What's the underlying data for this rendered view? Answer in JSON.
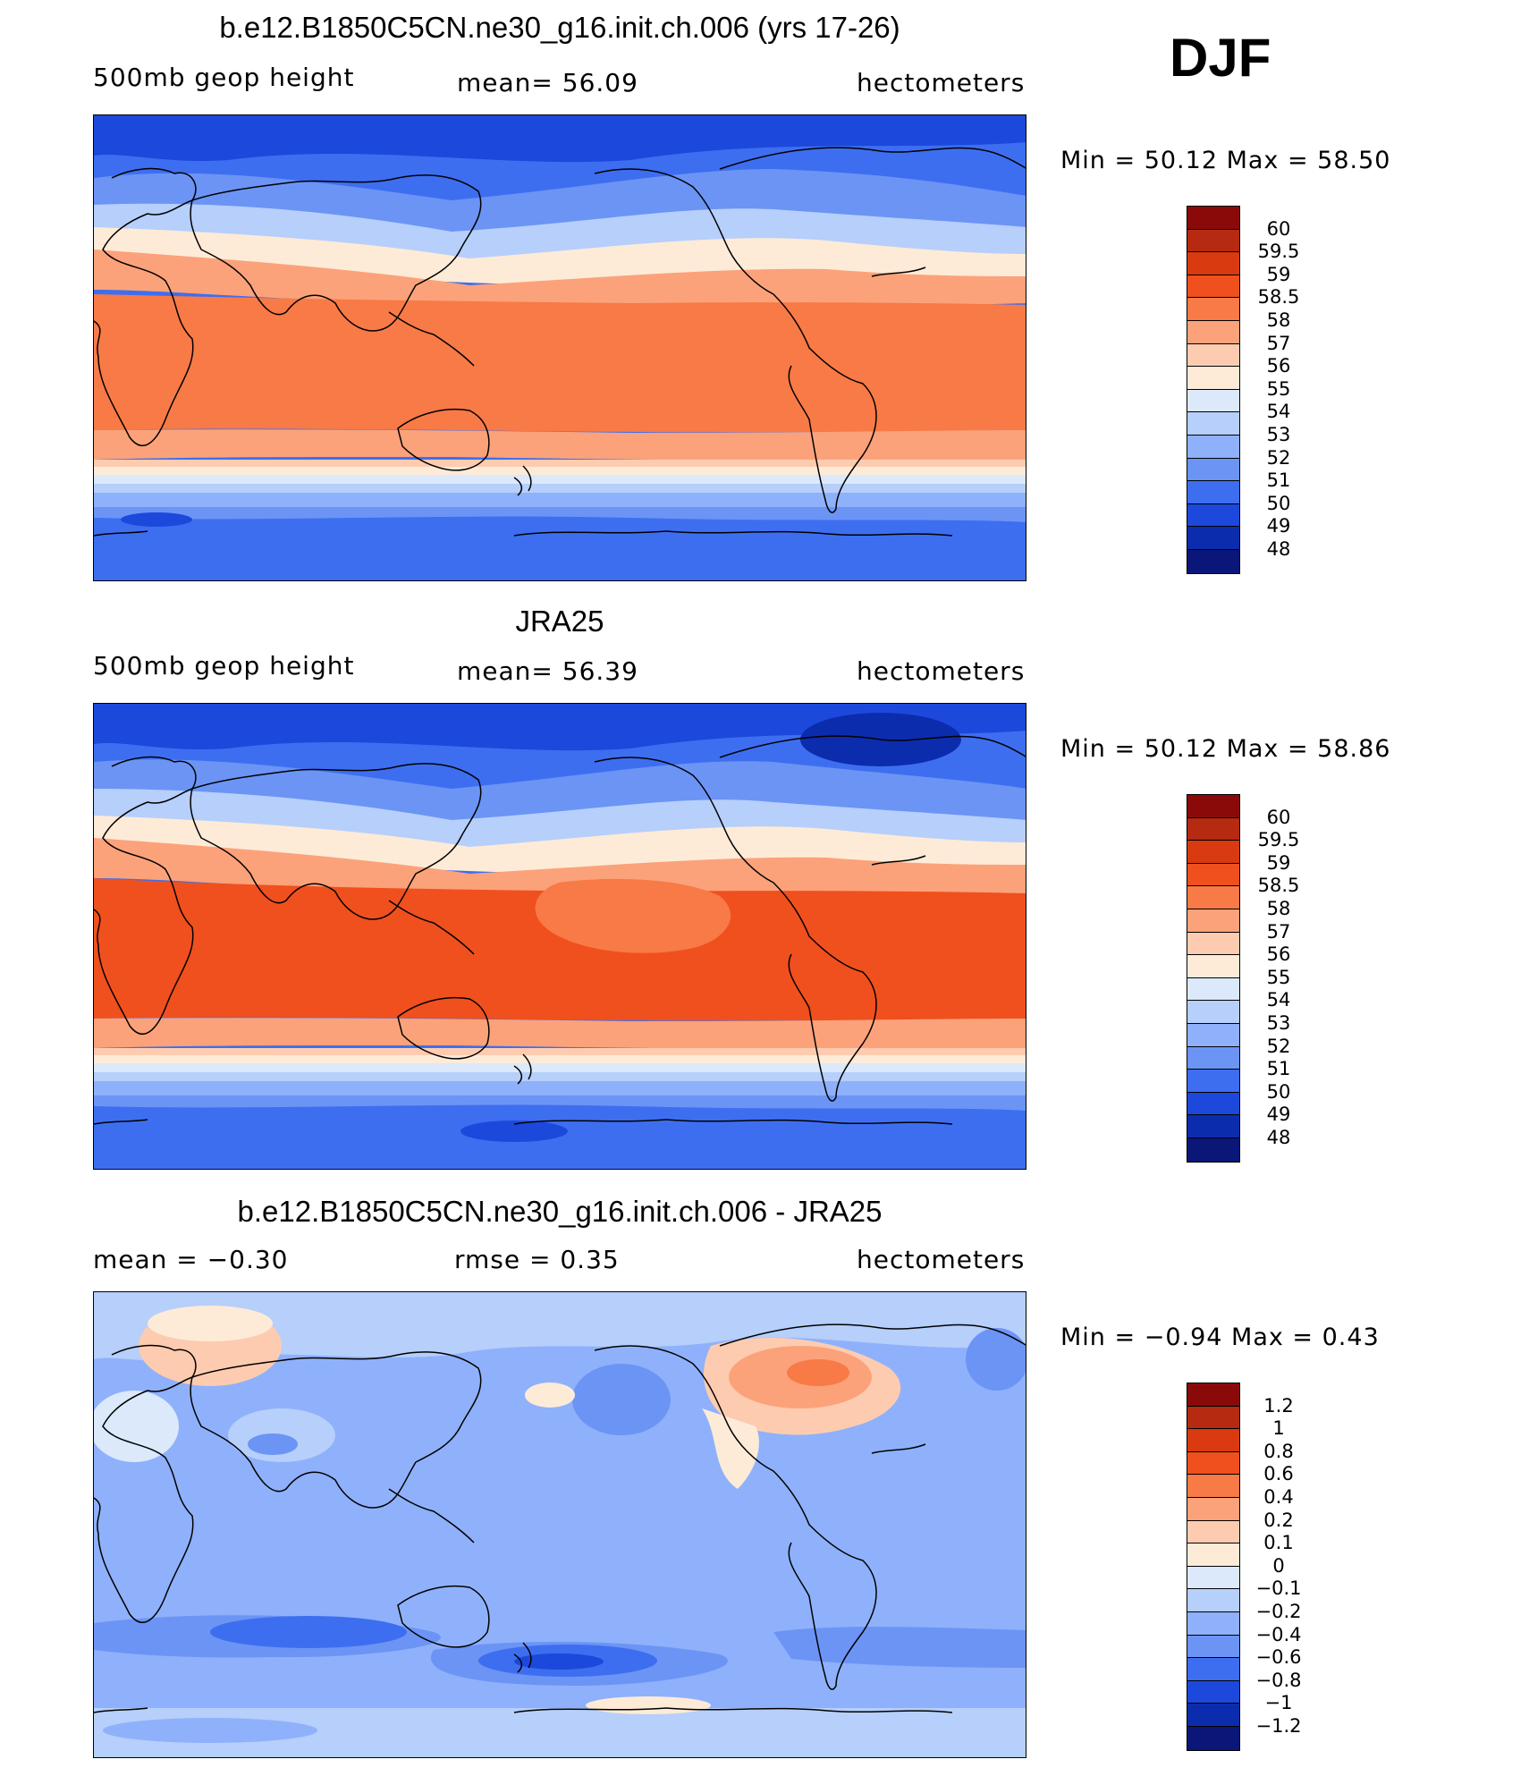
{
  "season": "DJF",
  "panels": [
    {
      "title": "b.e12.B1850C5CN.ne30_g16.init.ch.006 (yrs 17-26)",
      "left": "500mb  geop  height",
      "center": "mean=   56.09",
      "right": "hectometers",
      "minmax": "Min  =    50.12  Max  =    58.50",
      "colorbar_labels": [
        "60",
        "59.5",
        "59",
        "58.5",
        "58",
        "57",
        "56",
        "55",
        "54",
        "53",
        "52",
        "51",
        "50",
        "49",
        "48"
      ],
      "colorbar_colors": [
        "#8a0a0a",
        "#b52a10",
        "#d93a0f",
        "#f0501e",
        "#f87a46",
        "#fba27a",
        "#fdccb0",
        "#fdebd8",
        "#dbe9fb",
        "#b6cffb",
        "#8fb1fb",
        "#6b94f5",
        "#3e6ef0",
        "#1c49dc",
        "#0c2cae",
        "#0a1678"
      ]
    },
    {
      "title": "JRA25",
      "left": "500mb  geop  height",
      "center": "mean=   56.39",
      "right": "hectometers",
      "minmax": "Min  =    50.12  Max  =    58.86",
      "colorbar_labels": [
        "60",
        "59.5",
        "59",
        "58.5",
        "58",
        "57",
        "56",
        "55",
        "54",
        "53",
        "52",
        "51",
        "50",
        "49",
        "48"
      ],
      "colorbar_colors": [
        "#8a0a0a",
        "#b52a10",
        "#d93a0f",
        "#f0501e",
        "#f87a46",
        "#fba27a",
        "#fdccb0",
        "#fdebd8",
        "#dbe9fb",
        "#b6cffb",
        "#8fb1fb",
        "#6b94f5",
        "#3e6ef0",
        "#1c49dc",
        "#0c2cae",
        "#0a1678"
      ]
    },
    {
      "title": "b.e12.B1850C5CN.ne30_g16.init.ch.006 - JRA25",
      "left": "mean  =    −0.30",
      "center": "rmse  =     0.35",
      "right": "hectometers",
      "minmax": "Min  =    −0.94  Max  =      0.43",
      "colorbar_labels": [
        "1.2",
        "1",
        "0.8",
        "0.6",
        "0.4",
        "0.2",
        "0.1",
        "0",
        "−0.1",
        "−0.2",
        "−0.4",
        "−0.6",
        "−0.8",
        "−1",
        "−1.2"
      ],
      "colorbar_colors": [
        "#8a0a0a",
        "#b52a10",
        "#d93a0f",
        "#f0501e",
        "#f87a46",
        "#fba27a",
        "#fdccb0",
        "#fdebd8",
        "#dbe9fb",
        "#b6cffb",
        "#8fb1fb",
        "#6b94f5",
        "#3e6ef0",
        "#1c49dc",
        "#0c2cae",
        "#0a1678"
      ]
    }
  ]
}
